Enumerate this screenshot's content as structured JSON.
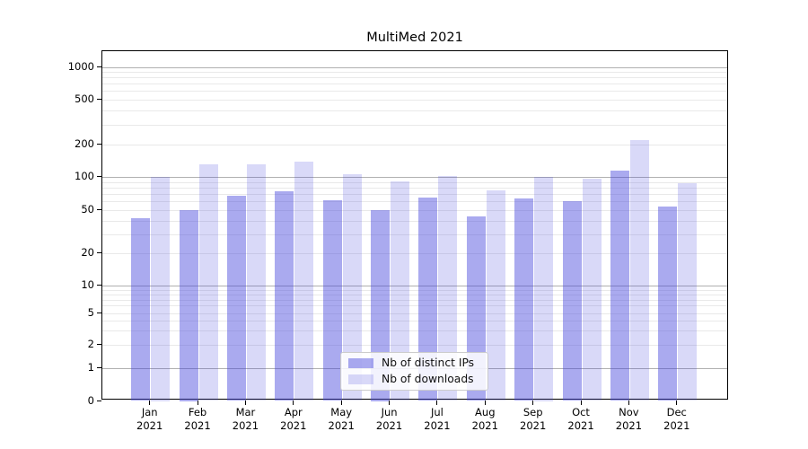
{
  "title": "MultiMed 2021",
  "chart_data": {
    "type": "bar",
    "title": "MultiMed 2021",
    "categories": [
      "Jan",
      "Feb",
      "Mar",
      "Apr",
      "May",
      "Jun",
      "Jul",
      "Aug",
      "Sep",
      "Oct",
      "Nov",
      "Dec"
    ],
    "category_year": "2021",
    "series": [
      {
        "name": "Nb of distinct IPs",
        "color": "rgba(66,66,220,0.45)",
        "values": [
          42,
          50,
          68,
          74,
          62,
          50,
          65,
          44,
          64,
          60,
          115,
          54
        ]
      },
      {
        "name": "Nb of downloads",
        "color": "rgba(66,66,220,0.20)",
        "values": [
          100,
          130,
          130,
          140,
          105,
          91,
          102,
          75,
          100,
          96,
          220,
          87
        ]
      }
    ],
    "y_ticks": [
      0,
      1,
      2,
      5,
      10,
      20,
      50,
      100,
      200,
      500,
      1000
    ],
    "y_scale": "symlog",
    "ylim": [
      0,
      1000
    ],
    "grid": true,
    "legend_position": "lower center"
  },
  "colors": {
    "bar_base": "#4242dc",
    "major_grid": "#b0b0b0",
    "minor_grid": "#e9e9e9",
    "spine": "#000000",
    "text": "#111111",
    "legend_border": "#cccccc",
    "background": "#ffffff"
  }
}
